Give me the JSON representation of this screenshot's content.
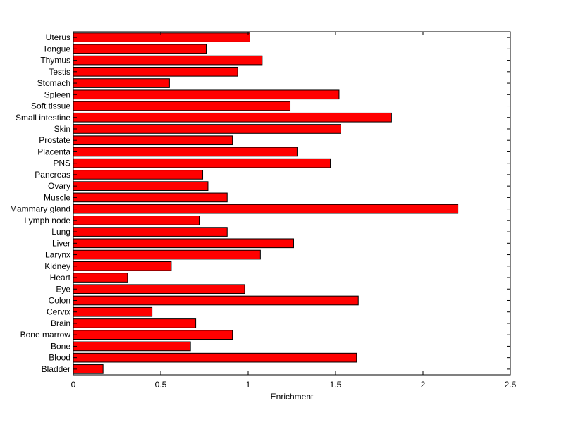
{
  "chart_data": {
    "type": "bar",
    "orientation": "horizontal",
    "title": "",
    "xlabel": "Enrichment",
    "ylabel": "",
    "xlim": [
      0,
      2.5
    ],
    "xticks": [
      0,
      0.5,
      1,
      1.5,
      2,
      2.5
    ],
    "xtick_labels": [
      "0",
      "0.5",
      "1",
      "1.5",
      "2",
      "2.5"
    ],
    "grid": false,
    "legend": "none",
    "bar_color": "#ff0000",
    "bar_edge_color": "#000000",
    "categories": [
      "Bladder",
      "Blood",
      "Bone",
      "Bone marrow",
      "Brain",
      "Cervix",
      "Colon",
      "Eye",
      "Heart",
      "Kidney",
      "Larynx",
      "Liver",
      "Lung",
      "Lymph node",
      "Mammary gland",
      "Muscle",
      "Ovary",
      "Pancreas",
      "PNS",
      "Placenta",
      "Prostate",
      "Skin",
      "Small intestine",
      "Soft tissue",
      "Spleen",
      "Stomach",
      "Testis",
      "Thymus",
      "Tongue",
      "Uterus"
    ],
    "values": [
      0.17,
      1.62,
      0.67,
      0.91,
      0.7,
      0.45,
      1.63,
      0.98,
      0.31,
      0.56,
      1.07,
      1.26,
      0.88,
      0.72,
      2.2,
      0.88,
      0.77,
      0.74,
      1.47,
      1.28,
      0.91,
      1.53,
      1.82,
      1.24,
      1.52,
      0.55,
      0.94,
      1.08,
      0.76,
      1.01
    ]
  }
}
